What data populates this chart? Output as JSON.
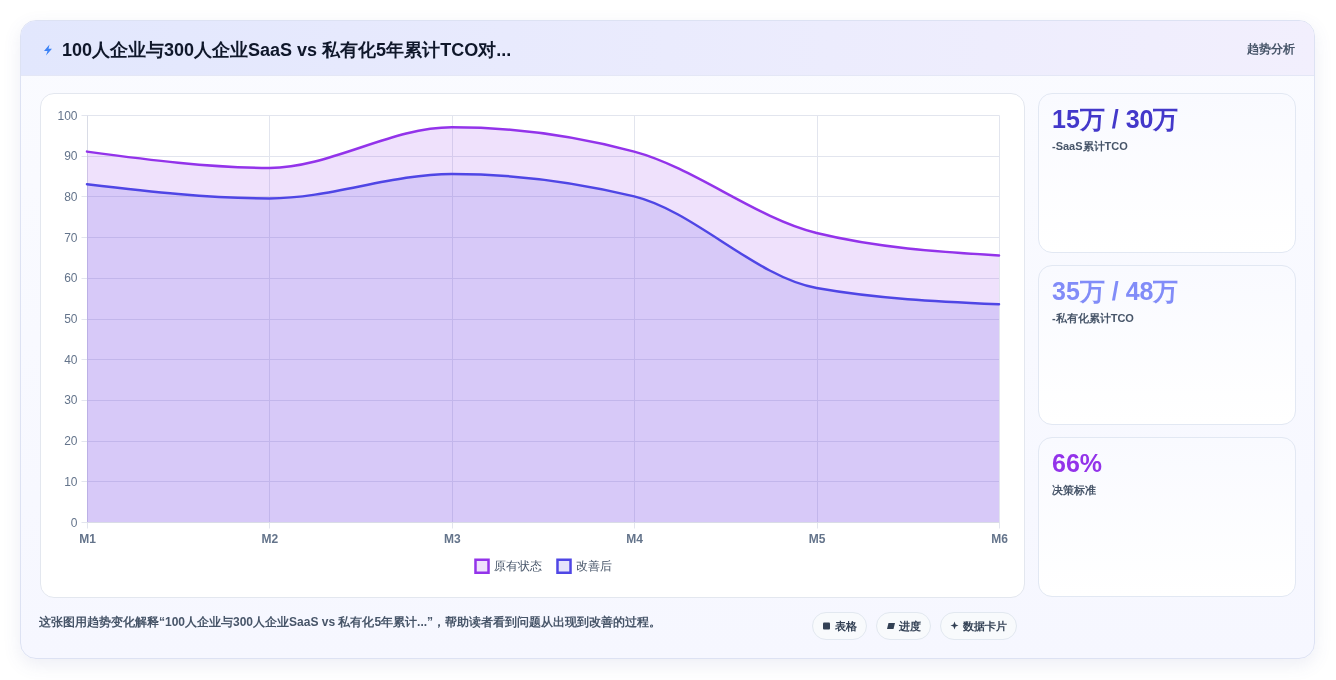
{
  "chart_data": [
    {
      "type": "area",
      "title": "100人企业与300人企业SaaS vs 私有化5年累计TCO对...",
      "categories": [
        "M1",
        "M2",
        "M3",
        "M4",
        "M5",
        "M6"
      ],
      "series": [
        {
          "name": "原有状态",
          "color": "#9333ea",
          "values": [
            91,
            87,
            97,
            91,
            71,
            65.5
          ]
        },
        {
          "name": "改善后",
          "color": "#4f46e5",
          "values": [
            83,
            79.5,
            85.5,
            80,
            57.5,
            53.5
          ]
        }
      ],
      "ylim": [
        0,
        100
      ],
      "yticks": [
        0,
        10,
        20,
        30,
        40,
        50,
        60,
        70,
        80,
        90,
        100
      ],
      "grid": true,
      "legend": "bottom",
      "annotations": [
        "趋势分析",
        "这张图用趋势变化解释“100人企业与300人企业SaaS vs 私有化5年累计...”，帮助读者看到问题从出现到改善的过程。",
        "表格",
        "进度",
        "数据卡片"
      ]
    },
    {
      "type": "other",
      "title": "15万 / 30万",
      "subtitle": "-SaaS累计TCO"
    },
    {
      "type": "other",
      "title": "35万 / 48万",
      "subtitle": "-私有化累计TCO"
    },
    {
      "type": "other",
      "title": "66%",
      "subtitle": "决策标准"
    }
  ]
}
